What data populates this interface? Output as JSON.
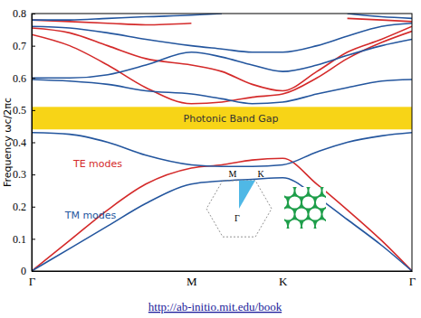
{
  "chart_data": {
    "type": "line",
    "y_label": "Frequency ωc/2πc",
    "xlim": [
      0,
      1
    ],
    "xticks": [
      {
        "value": 0,
        "label": "Γ"
      },
      {
        "value": 0.42,
        "label": "M"
      },
      {
        "value": 0.66,
        "label": "K"
      },
      {
        "value": 1,
        "label": "Γ"
      }
    ],
    "ylim": [
      0,
      0.8
    ],
    "yticks": [
      0,
      0.1,
      0.2,
      0.3,
      0.4,
      0.5,
      0.6,
      0.7,
      0.8
    ],
    "grid": false,
    "band_gap": {
      "label": "Photonic Band Gap",
      "range": [
        0.44,
        0.51
      ],
      "color": "#f7d417"
    },
    "series": [
      {
        "name": "TE modes",
        "color": "#d42a2a",
        "x": [
          0,
          0.1,
          0.2,
          0.3,
          0.42,
          0.5,
          0.58,
          0.66,
          0.75,
          0.83,
          0.92,
          1,
          null,
          0,
          0.1,
          0.2,
          0.3,
          0.42,
          0.5,
          0.58,
          0.66,
          0.75,
          0.83,
          0.92,
          1,
          null,
          0,
          0.1,
          0.2,
          0.3,
          0.42,
          0.5,
          0.58,
          0.66,
          0.75,
          0.83,
          0.92,
          1,
          null,
          0,
          0.1,
          0.2,
          0.3,
          0.42,
          0.5,
          0.58,
          0.66,
          0.75,
          0.83,
          0.92,
          1
        ],
        "values": [
          0,
          0.095,
          0.19,
          0.27,
          0.32,
          0.33,
          0.345,
          0.35,
          0.27,
          0.19,
          0.095,
          0,
          null,
          0.735,
          0.7,
          0.64,
          0.57,
          0.52,
          0.525,
          0.54,
          0.55,
          0.6,
          0.66,
          0.71,
          0.745,
          null,
          0.755,
          0.74,
          0.7,
          0.66,
          0.64,
          0.62,
          0.58,
          0.56,
          0.62,
          0.68,
          0.72,
          0.76,
          null,
          0.78,
          0.775,
          0.77,
          0.765,
          0.77,
          null,
          null,
          null,
          null,
          0.785,
          0.78,
          0.775
        ]
      },
      {
        "name": "TM modes",
        "color": "#24569e",
        "x": [
          0,
          0.1,
          0.2,
          0.3,
          0.42,
          0.5,
          0.58,
          0.66,
          0.75,
          0.83,
          0.92,
          1,
          null,
          0,
          0.1,
          0.2,
          0.3,
          0.42,
          0.5,
          0.58,
          0.66,
          0.75,
          0.83,
          0.92,
          1,
          null,
          0,
          0.1,
          0.2,
          0.3,
          0.42,
          0.5,
          0.58,
          0.66,
          0.75,
          0.83,
          0.92,
          1,
          null,
          0,
          0.1,
          0.2,
          0.3,
          0.42,
          0.5,
          0.58,
          0.66,
          0.75,
          0.83,
          0.92,
          1,
          null,
          0,
          0.1,
          0.2,
          0.3,
          0.42,
          0.5,
          0.58,
          0.66,
          0.75,
          0.83,
          0.92,
          1,
          null,
          0,
          0.1,
          0.2,
          0.3,
          0.42,
          0.5,
          0.58,
          0.66,
          0.75,
          0.83,
          0.92,
          1
        ],
        "values": [
          0,
          0.07,
          0.14,
          0.21,
          0.27,
          0.28,
          0.285,
          0.29,
          0.23,
          0.16,
          0.08,
          0,
          null,
          0.43,
          0.425,
          0.4,
          0.36,
          0.33,
          0.325,
          0.325,
          0.33,
          0.37,
          0.4,
          0.42,
          0.43,
          null,
          0.595,
          0.59,
          0.58,
          0.56,
          0.55,
          0.535,
          0.52,
          0.525,
          0.55,
          0.57,
          0.59,
          0.595,
          null,
          0.6,
          0.6,
          0.61,
          0.64,
          0.68,
          0.665,
          0.64,
          0.62,
          0.64,
          0.67,
          0.7,
          0.72,
          null,
          0.76,
          0.755,
          0.74,
          0.72,
          0.7,
          0.69,
          0.68,
          0.68,
          0.7,
          0.73,
          0.76,
          0.77,
          null,
          0.78,
          0.78,
          0.785,
          0.79,
          0.795,
          0.8,
          null,
          null,
          null,
          0.8,
          0.79,
          0.785
        ]
      }
    ],
    "annotations": [
      "M",
      "K",
      "Γ"
    ],
    "source": "http://ab-initio.mit.edu/book"
  }
}
